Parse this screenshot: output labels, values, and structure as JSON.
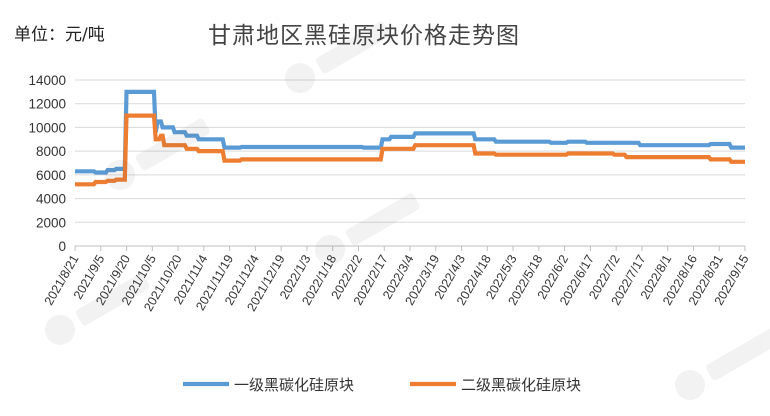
{
  "header": {
    "unit_label": "单位：元/吨",
    "title": "甘肃地区黑硅原块价格走势图"
  },
  "chart_data": {
    "type": "line",
    "title": "甘肃地区黑硅原块价格走势图",
    "xlabel": "",
    "ylabel": "单位：元/吨",
    "ylim": [
      0,
      14000
    ],
    "yticks": [
      0,
      2000,
      4000,
      6000,
      8000,
      10000,
      12000,
      14000
    ],
    "xlim": [
      "2021/8/21",
      "2022/9/15"
    ],
    "xtick_labels": [
      "2021/8/21",
      "2021/9/5",
      "2021/9/20",
      "2021/10/5",
      "2021/10/20",
      "2021/11/4",
      "2021/11/19",
      "2021/12/4",
      "2021/12/19",
      "2022/1/3",
      "2022/1/18",
      "2022/2/2",
      "2022/2/17",
      "2022/3/4",
      "2022/3/19",
      "2022/4/3",
      "2022/4/18",
      "2022/5/3",
      "2022/5/18",
      "2022/6/2",
      "2022/6/17",
      "2022/7/2",
      "2022/7/17",
      "2022/8/1",
      "2022/8/16",
      "2022/8/31",
      "2022/9/15"
    ],
    "grid": "horizontal",
    "legend_position": "bottom",
    "series": [
      {
        "name": "一级黑碳化硅原块",
        "color": "#5b9bd5",
        "points": [
          [
            "2021/8/21",
            6300
          ],
          [
            "2021/9/1",
            6300
          ],
          [
            "2021/9/2",
            6200
          ],
          [
            "2021/9/8",
            6200
          ],
          [
            "2021/9/9",
            6400
          ],
          [
            "2021/9/13",
            6400
          ],
          [
            "2021/9/14",
            6500
          ],
          [
            "2021/9/19",
            6500
          ],
          [
            "2021/9/20",
            13000
          ],
          [
            "2021/10/6",
            13000
          ],
          [
            "2021/10/7",
            9600
          ],
          [
            "2021/10/8",
            10500
          ],
          [
            "2021/10/10",
            10500
          ],
          [
            "2021/10/11",
            10000
          ],
          [
            "2021/10/17",
            10000
          ],
          [
            "2021/10/18",
            9600
          ],
          [
            "2021/10/24",
            9600
          ],
          [
            "2021/10/25",
            9300
          ],
          [
            "2021/10/31",
            9300
          ],
          [
            "2021/11/1",
            9000
          ],
          [
            "2021/11/15",
            9000
          ],
          [
            "2021/11/16",
            8300
          ],
          [
            "2021/11/25",
            8300
          ],
          [
            "2021/11/26",
            8350
          ],
          [
            "2022/2/4",
            8350
          ],
          [
            "2022/2/5",
            8300
          ],
          [
            "2022/2/15",
            8300
          ],
          [
            "2022/2/16",
            9000
          ],
          [
            "2022/2/20",
            9000
          ],
          [
            "2022/2/21",
            9200
          ],
          [
            "2022/3/6",
            9200
          ],
          [
            "2022/3/7",
            9500
          ],
          [
            "2022/4/10",
            9500
          ],
          [
            "2022/4/11",
            9000
          ],
          [
            "2022/4/22",
            9000
          ],
          [
            "2022/4/23",
            8800
          ],
          [
            "2022/5/24",
            8800
          ],
          [
            "2022/5/25",
            8700
          ],
          [
            "2022/6/3",
            8700
          ],
          [
            "2022/6/4",
            8800
          ],
          [
            "2022/6/14",
            8800
          ],
          [
            "2022/6/15",
            8700
          ],
          [
            "2022/7/15",
            8700
          ],
          [
            "2022/7/16",
            8500
          ],
          [
            "2022/8/25",
            8500
          ],
          [
            "2022/8/26",
            8600
          ],
          [
            "2022/9/6",
            8600
          ],
          [
            "2022/9/7",
            8300
          ],
          [
            "2022/9/15",
            8300
          ]
        ]
      },
      {
        "name": "二级黑碳化硅原块",
        "color": "#ed7d31",
        "points": [
          [
            "2021/8/21",
            5200
          ],
          [
            "2021/9/1",
            5200
          ],
          [
            "2021/9/2",
            5400
          ],
          [
            "2021/9/8",
            5400
          ],
          [
            "2021/9/9",
            5500
          ],
          [
            "2021/9/13",
            5500
          ],
          [
            "2021/9/14",
            5600
          ],
          [
            "2021/9/19",
            5600
          ],
          [
            "2021/9/20",
            11000
          ],
          [
            "2021/10/6",
            11000
          ],
          [
            "2021/10/7",
            9000
          ],
          [
            "2021/10/9",
            9000
          ],
          [
            "2021/10/10",
            9300
          ],
          [
            "2021/10/11",
            9300
          ],
          [
            "2021/10/12",
            8500
          ],
          [
            "2021/10/24",
            8500
          ],
          [
            "2021/10/25",
            8200
          ],
          [
            "2021/10/31",
            8200
          ],
          [
            "2021/11/1",
            8000
          ],
          [
            "2021/11/15",
            8000
          ],
          [
            "2021/11/16",
            7200
          ],
          [
            "2021/11/25",
            7200
          ],
          [
            "2021/11/26",
            7300
          ],
          [
            "2022/2/15",
            7300
          ],
          [
            "2022/2/16",
            8200
          ],
          [
            "2022/3/6",
            8200
          ],
          [
            "2022/3/7",
            8500
          ],
          [
            "2022/4/10",
            8500
          ],
          [
            "2022/4/11",
            7800
          ],
          [
            "2022/4/22",
            7800
          ],
          [
            "2022/4/23",
            7700
          ],
          [
            "2022/6/3",
            7700
          ],
          [
            "2022/6/4",
            7800
          ],
          [
            "2022/6/30",
            7800
          ],
          [
            "2022/7/1",
            7700
          ],
          [
            "2022/7/7",
            7700
          ],
          [
            "2022/7/8",
            7500
          ],
          [
            "2022/8/25",
            7500
          ],
          [
            "2022/8/26",
            7300
          ],
          [
            "2022/9/6",
            7300
          ],
          [
            "2022/9/7",
            7100
          ],
          [
            "2022/9/15",
            7100
          ]
        ]
      }
    ]
  }
}
